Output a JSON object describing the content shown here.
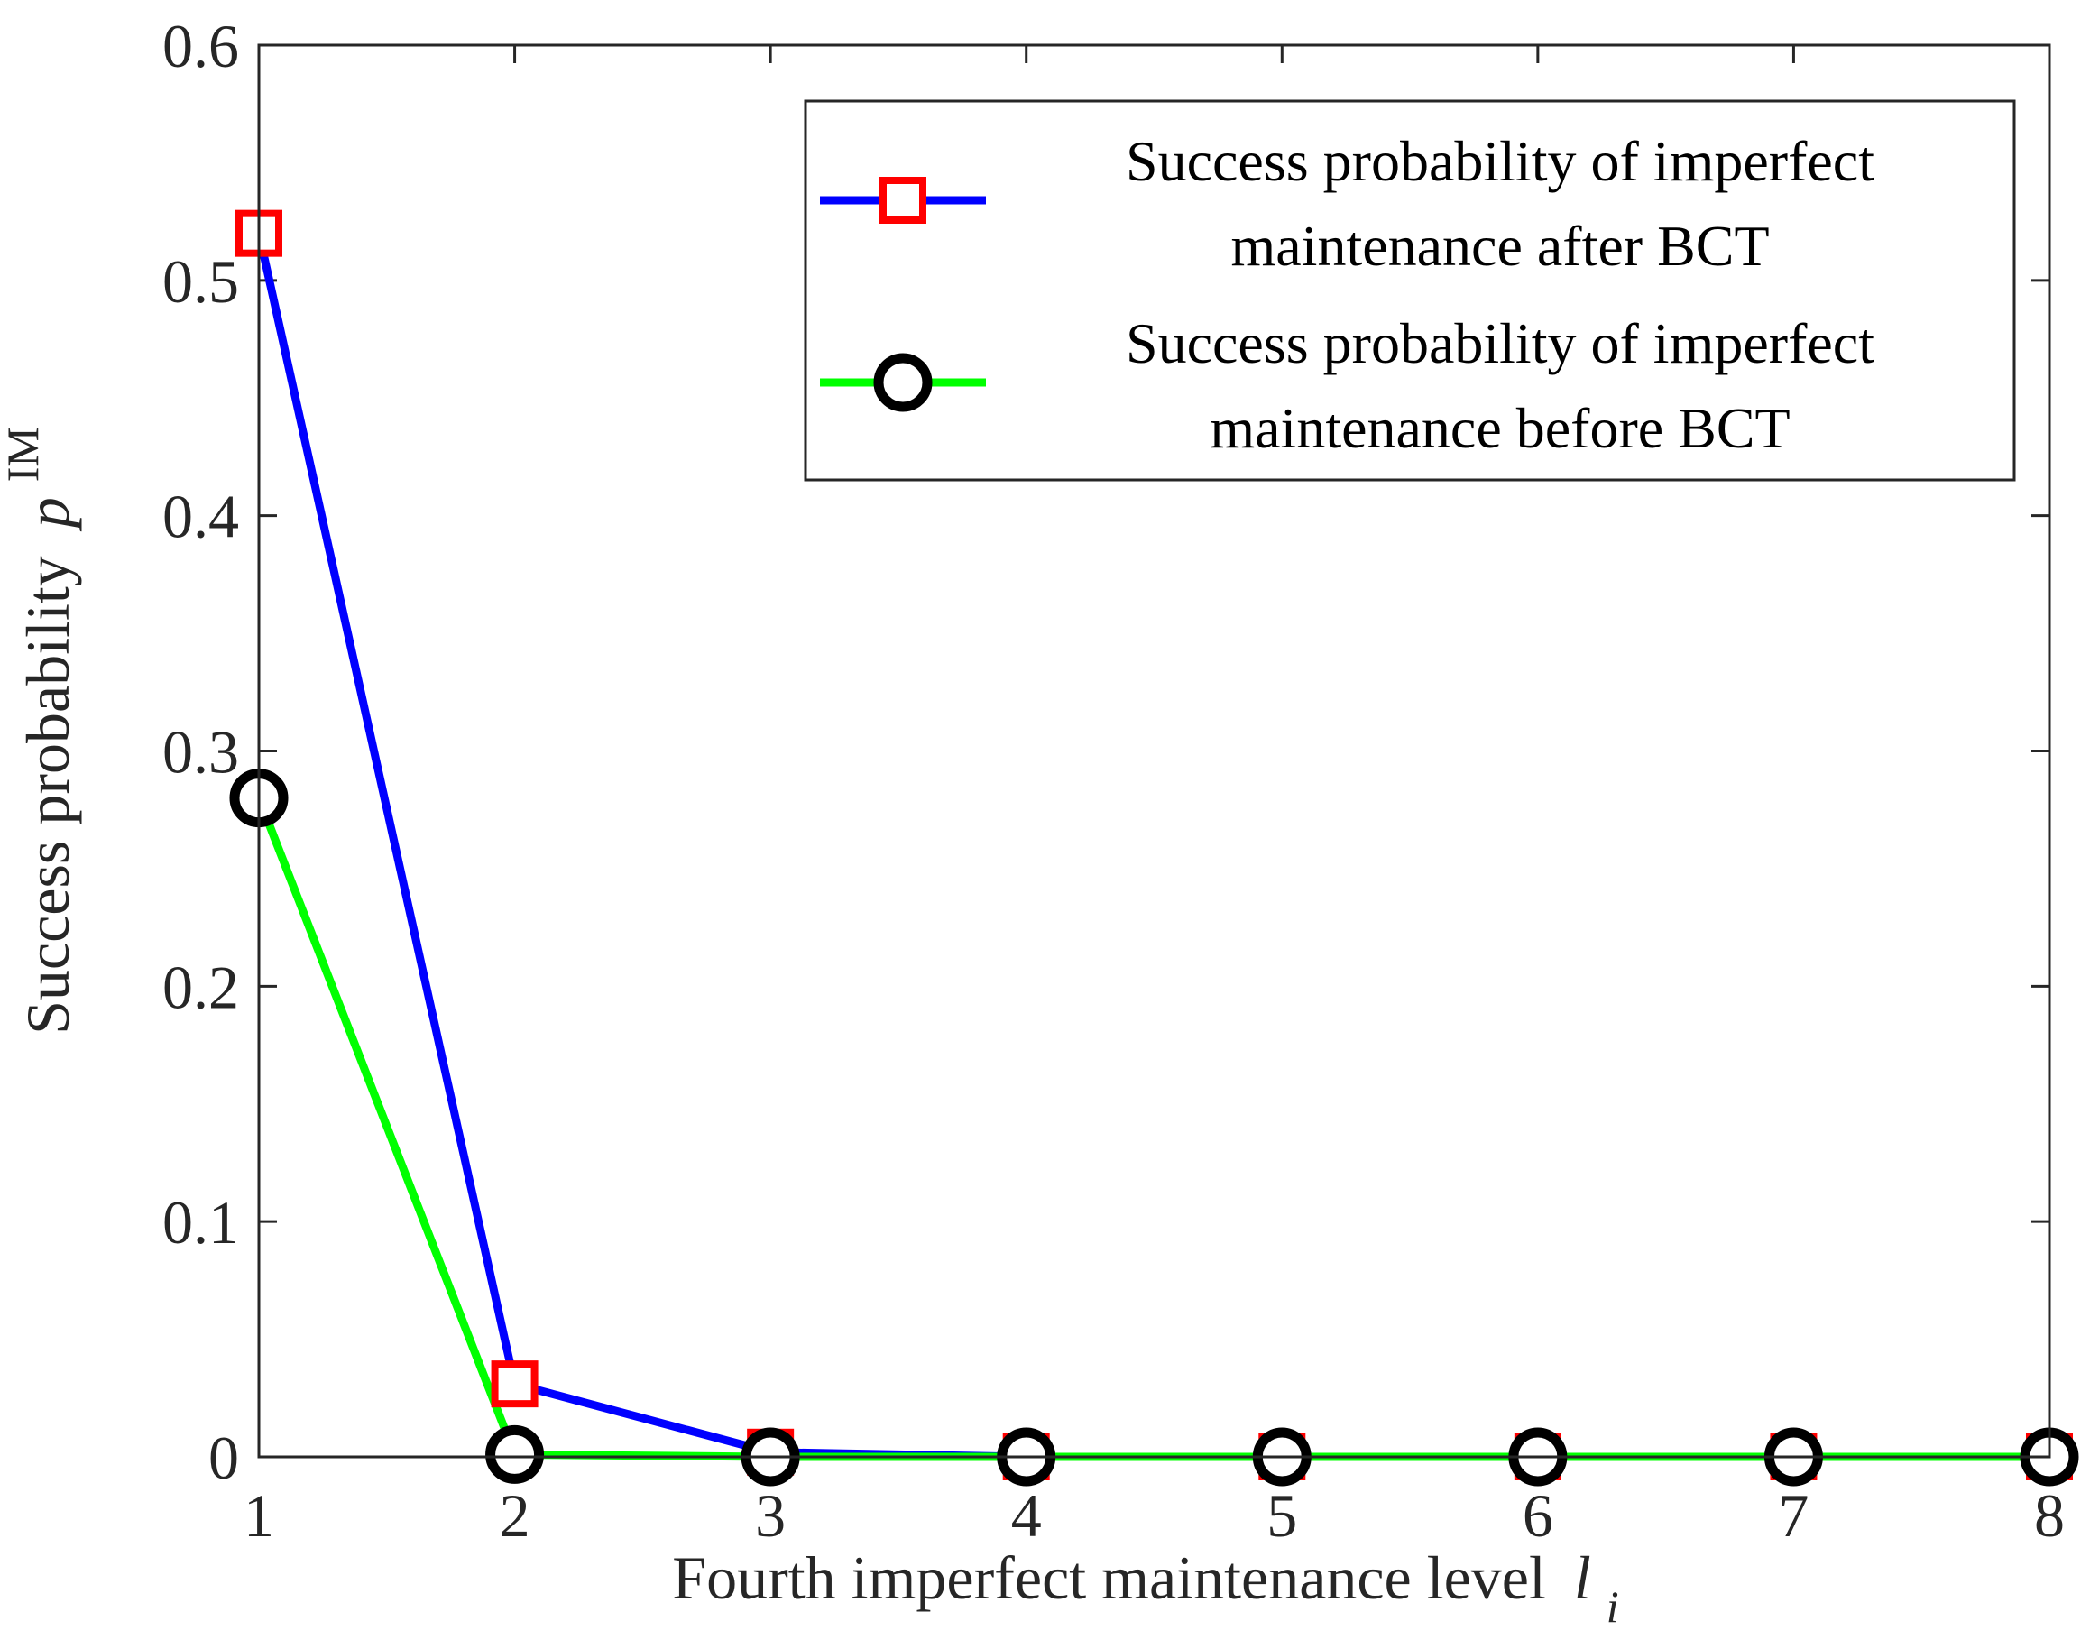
{
  "chart_data": {
    "type": "line",
    "title": "",
    "xlabel": "Fourth imperfect maintenance level",
    "xlabel_symbol": "l",
    "xlabel_subscript": "i",
    "ylabel": "Success probability",
    "ylabel_symbol": "p",
    "ylabel_superscript": "IM",
    "xlim": [
      1,
      8
    ],
    "ylim": [
      0,
      0.6
    ],
    "x_ticks": [
      "1",
      "2",
      "3",
      "4",
      "5",
      "6",
      "7",
      "8"
    ],
    "y_ticks": [
      "0",
      "0.1",
      "0.2",
      "0.3",
      "0.4",
      "0.5",
      "0.6"
    ],
    "x": [
      1,
      2,
      3,
      4,
      5,
      6,
      7,
      8
    ],
    "grid": false,
    "legend_position": "top-right",
    "series": [
      {
        "name": [
          "Success probability of imperfect",
          "maintenance after BCT"
        ],
        "values": [
          0.52,
          0.031,
          0.002,
          0.0,
          0.0,
          0.0,
          0.0,
          0.0
        ],
        "line_color": "#0000ff",
        "marker": "square",
        "marker_color": "#ff0000"
      },
      {
        "name": [
          "Success probability of imperfect",
          "maintenance before BCT"
        ],
        "values": [
          0.28,
          0.001,
          0.0,
          0.0,
          0.0,
          0.0,
          0.0,
          0.0
        ],
        "line_color": "#00ff00",
        "marker": "circle",
        "marker_color": "#000000"
      }
    ]
  }
}
